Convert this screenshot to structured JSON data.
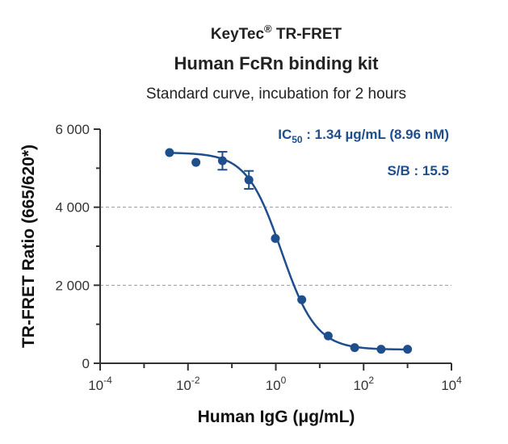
{
  "chart_data": {
    "type": "scatter",
    "title_brand": "KeyTec",
    "title_brand_mark": "®",
    "title_brand_suffix": " TR-FRET",
    "title": "Human FcRn binding kit",
    "subtitle": "Standard curve,  incubation for 2 hours",
    "xlabel": "Human IgG  (μg/mL)",
    "ylabel": "TR-FRET Ratio (665/620*)",
    "x_scale": "log10",
    "xlim": [
      0.0001,
      10000
    ],
    "ylim": [
      0,
      6000
    ],
    "x_ticks": [
      {
        "base": "10",
        "exp": "-4",
        "value": 0.0001
      },
      {
        "base": "10",
        "exp": "-2",
        "value": 0.01
      },
      {
        "base": "10",
        "exp": "0",
        "value": 1
      },
      {
        "base": "10",
        "exp": "2",
        "value": 100
      },
      {
        "base": "10",
        "exp": "4",
        "value": 10000
      }
    ],
    "y_ticks": [
      {
        "label": "0",
        "value": 0
      },
      {
        "label": "2 000",
        "value": 2000
      },
      {
        "label": "4 000",
        "value": 4000
      },
      {
        "label": "6 000",
        "value": 6000
      }
    ],
    "grid": "horizontal dashed at 2000 and 4000",
    "color": "#1f4e8c",
    "points": [
      {
        "x": 0.0038,
        "y": 5400,
        "err": 0
      },
      {
        "x": 0.0152,
        "y": 5150,
        "err": 0
      },
      {
        "x": 0.061,
        "y": 5190,
        "err": 230
      },
      {
        "x": 0.244,
        "y": 4700,
        "err": 230
      },
      {
        "x": 0.977,
        "y": 3200,
        "err": 0
      },
      {
        "x": 3.9,
        "y": 1630,
        "err": 0
      },
      {
        "x": 15.6,
        "y": 700,
        "err": 0
      },
      {
        "x": 62.5,
        "y": 400,
        "err": 0
      },
      {
        "x": 250,
        "y": 360,
        "err": 0
      },
      {
        "x": 1000,
        "y": 360,
        "err": 0
      }
    ],
    "fit": {
      "model": "4PL",
      "top": 5400,
      "bottom": 350,
      "ic50": 1.34,
      "hill": 1.1
    },
    "annotations": {
      "ic50_prefix": "IC",
      "ic50_sub": "50",
      "ic50_value": " : 1.34 µg/mL (8.96 nM)",
      "sb": "S/B : 15.5"
    }
  }
}
